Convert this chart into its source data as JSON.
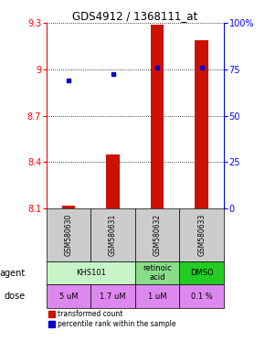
{
  "title": "GDS4912 / 1368111_at",
  "samples": [
    "GSM580630",
    "GSM580631",
    "GSM580632",
    "GSM580633"
  ],
  "red_values": [
    8.12,
    8.45,
    9.29,
    9.19
  ],
  "blue_values": [
    8.93,
    8.97,
    9.01,
    9.01
  ],
  "ylim_left": [
    8.1,
    9.3
  ],
  "ylim_right": [
    0,
    100
  ],
  "yticks_left": [
    8.1,
    8.4,
    8.7,
    9.0,
    9.3
  ],
  "yticks_right": [
    0,
    25,
    50,
    75,
    100
  ],
  "ytick_labels_left": [
    "8.1",
    "8.4",
    "8.7",
    "9",
    "9.3"
  ],
  "ytick_labels_right": [
    "0",
    "25",
    "50",
    "75",
    "100%"
  ],
  "agent_spans": [
    [
      0,
      2,
      "KHS101"
    ],
    [
      2,
      3,
      "retinoic\nacid"
    ],
    [
      3,
      4,
      "DMSO"
    ]
  ],
  "agent_colors": {
    "KHS101": "#c8f5c8",
    "retinoic\nacid": "#88dd88",
    "DMSO": "#22cc22"
  },
  "dose_labels": [
    "5 uM",
    "1.7 uM",
    "1 uM",
    "0.1 %"
  ],
  "dose_color": "#dd88ee",
  "sample_bg": "#cccccc",
  "bar_color": "#cc1100",
  "dot_color": "#0000cc",
  "bar_width": 0.3,
  "baseline": 8.1
}
